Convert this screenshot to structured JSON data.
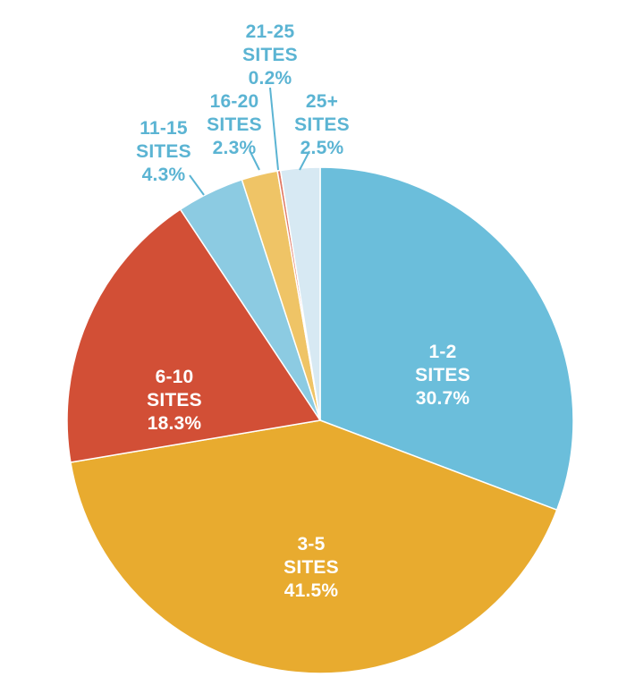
{
  "chart_data": {
    "type": "pie",
    "slices": [
      {
        "category": "1-2",
        "unit": "SITES",
        "value": 30.7,
        "percent_label": "30.7%",
        "color": "#6bbedb",
        "label_style": "inside"
      },
      {
        "category": "3-5",
        "unit": "SITES",
        "value": 41.5,
        "percent_label": "41.5%",
        "color": "#e8ab2f",
        "label_style": "inside"
      },
      {
        "category": "6-10",
        "unit": "SITES",
        "value": 18.3,
        "percent_label": "18.3%",
        "color": "#d24f36",
        "label_style": "inside"
      },
      {
        "category": "11-15",
        "unit": "SITES",
        "value": 4.3,
        "percent_label": "4.3%",
        "color": "#8ccbe2",
        "label_style": "outside"
      },
      {
        "category": "16-20",
        "unit": "SITES",
        "value": 2.3,
        "percent_label": "2.3%",
        "color": "#efc466",
        "label_style": "outside"
      },
      {
        "category": "21-25",
        "unit": "SITES",
        "value": 0.2,
        "percent_label": "0.2%",
        "color": "#e07a66",
        "label_style": "outside"
      },
      {
        "category": "25+",
        "unit": "SITES",
        "value": 2.5,
        "percent_label": "2.5%",
        "color": "#d7e9f3",
        "label_style": "outside"
      }
    ],
    "start_angle": "12 o'clock",
    "direction": "clockwise",
    "legend": "none",
    "label_text_color_outside": "#5bb4d3",
    "label_text_color_inside": "#ffffff"
  }
}
